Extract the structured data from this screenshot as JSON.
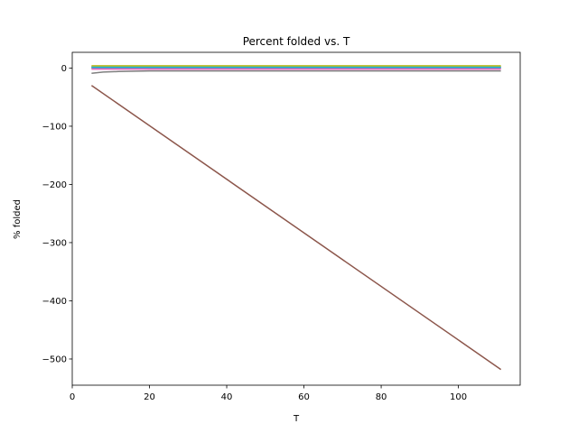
{
  "chart_data": {
    "type": "line",
    "title": "Percent folded vs. T",
    "xlabel": "T",
    "ylabel": "% folded",
    "xlim": [
      0,
      116
    ],
    "ylim": [
      -545,
      27
    ],
    "xticks": [
      0,
      20,
      40,
      60,
      80,
      100
    ],
    "yticks": [
      0,
      -100,
      -200,
      -300,
      -400,
      -500
    ],
    "xtick_labels": [
      "0",
      "20",
      "40",
      "60",
      "80",
      "100"
    ],
    "ytick_labels": [
      "0",
      "−100",
      "−200",
      "−300",
      "−400",
      "−500"
    ],
    "grid": false,
    "series": [
      {
        "color": "#1f77b4",
        "x": [
          5,
          10,
          20,
          40,
          60,
          80,
          100,
          111
        ],
        "y": [
          2,
          2,
          2,
          2,
          2,
          2,
          2,
          2
        ]
      },
      {
        "color": "#ff7f0e",
        "x": [
          5,
          10,
          20,
          40,
          60,
          80,
          100,
          111
        ],
        "y": [
          3,
          3,
          3,
          3,
          3,
          3,
          3,
          3
        ]
      },
      {
        "color": "#2ca02c",
        "x": [
          5,
          10,
          20,
          40,
          60,
          80,
          100,
          111
        ],
        "y": [
          1,
          1,
          1,
          1,
          1,
          1,
          1,
          1
        ]
      },
      {
        "color": "#d62728",
        "x": [
          5,
          10,
          20,
          40,
          60,
          80,
          100,
          111
        ],
        "y": [
          -1,
          -1,
          -1,
          -1,
          -1,
          -1,
          -1,
          -1
        ]
      },
      {
        "color": "#9467bd",
        "x": [
          5,
          10,
          20,
          40,
          60,
          80,
          100,
          111
        ],
        "y": [
          0,
          0,
          0,
          0,
          0,
          0,
          0,
          0
        ]
      },
      {
        "color": "#8c564b",
        "x": [
          5,
          111
        ],
        "y": [
          -30,
          -518
        ]
      },
      {
        "color": "#e377c2",
        "x": [
          5,
          10,
          20,
          40,
          60,
          80,
          100,
          111
        ],
        "y": [
          -2,
          -2,
          -2,
          -2,
          -2,
          -2,
          -2,
          -2
        ]
      },
      {
        "color": "#7f7f7f",
        "x": [
          5,
          8,
          12,
          20,
          40,
          60,
          80,
          100,
          111
        ],
        "y": [
          -9,
          -7,
          -6,
          -5,
          -5,
          -5,
          -5,
          -5,
          -5
        ]
      },
      {
        "color": "#bcbd22",
        "x": [
          5,
          10,
          20,
          40,
          60,
          80,
          100,
          111
        ],
        "y": [
          4,
          4,
          4,
          4,
          4,
          4,
          4,
          4
        ]
      },
      {
        "color": "#17becf",
        "x": [
          5,
          10,
          20,
          40,
          60,
          80,
          100,
          111
        ],
        "y": [
          1.5,
          1.5,
          1.5,
          1.5,
          1.5,
          1.5,
          1.5,
          1.5
        ]
      }
    ]
  }
}
